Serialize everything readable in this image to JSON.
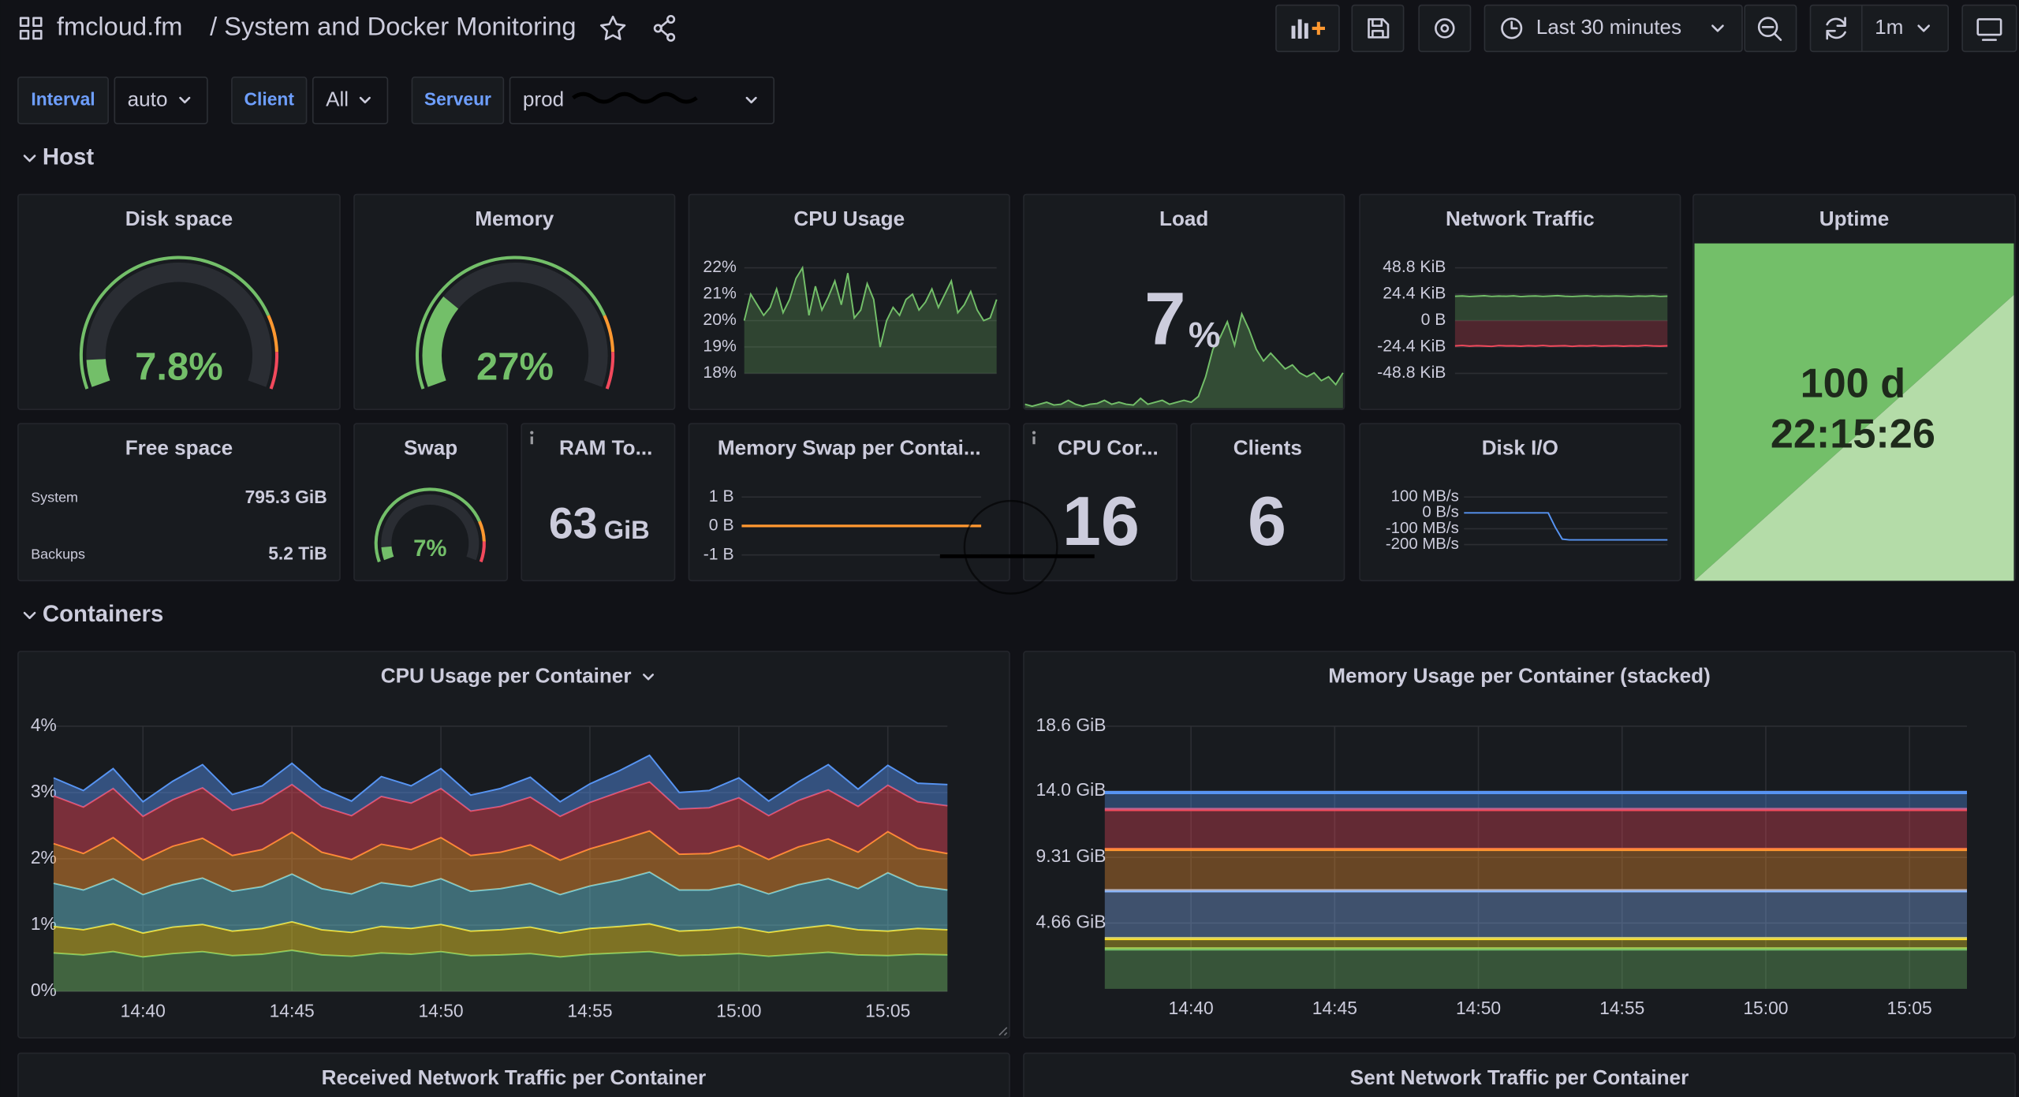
{
  "header": {
    "org": "fmcloud.fm",
    "title": "/ System and Docker Monitoring",
    "time_range": "Last 30 minutes",
    "refresh": "1m"
  },
  "variables": [
    {
      "label": "Interval",
      "value": "auto"
    },
    {
      "label": "Client",
      "value": "All"
    },
    {
      "label": "Serveur",
      "value": "prod"
    }
  ],
  "rows": [
    "Host",
    "Containers"
  ],
  "panels": {
    "disk_space": {
      "title": "Disk space",
      "type": "gauge",
      "value": 7.8,
      "value_label": "7.8%",
      "min": 0,
      "max": 100,
      "thresholds": [
        {
          "value": 0,
          "color": "#73bf69"
        },
        {
          "value": 80,
          "color": "#ff9830"
        },
        {
          "value": 90,
          "color": "#f2495c"
        }
      ]
    },
    "memory": {
      "title": "Memory",
      "type": "gauge",
      "value": 27,
      "value_label": "27%",
      "min": 0,
      "max": 100,
      "thresholds": [
        {
          "value": 0,
          "color": "#73bf69"
        },
        {
          "value": 80,
          "color": "#ff9830"
        },
        {
          "value": 90,
          "color": "#f2495c"
        }
      ]
    },
    "cpu_usage": {
      "title": "CPU Usage",
      "type": "line",
      "color": "#73bf69",
      "ylim": [
        18,
        22
      ],
      "yticks": [
        {
          "value": 22,
          "label": "22%"
        },
        {
          "value": 21,
          "label": "21%"
        },
        {
          "value": 20,
          "label": "20%"
        },
        {
          "value": 19,
          "label": "19%"
        },
        {
          "value": 18,
          "label": "18%"
        }
      ],
      "values": [
        20.0,
        21.0,
        20.6,
        20.2,
        20.5,
        21.2,
        20.3,
        20.8,
        21.6,
        22.0,
        20.2,
        21.3,
        20.4,
        20.9,
        21.5,
        20.6,
        21.8,
        20.1,
        20.4,
        21.4,
        20.8,
        19.0,
        20.0,
        20.5,
        20.2,
        20.8,
        21.0,
        20.4,
        20.7,
        21.2,
        20.5,
        21.0,
        21.5,
        20.3,
        20.6,
        21.1,
        20.4,
        20.0,
        20.1,
        20.8
      ]
    },
    "load": {
      "title": "Load",
      "type": "stat",
      "value": 7,
      "unit": "%",
      "color": "#73bf69",
      "ylim": [
        0,
        40
      ],
      "values": [
        1,
        0.5,
        1,
        1.5,
        0.8,
        1,
        2,
        1,
        0.5,
        1,
        1.2,
        2,
        1,
        1.5,
        1,
        0.8,
        2.5,
        1,
        1.5,
        2,
        1,
        1.5,
        2,
        1.5,
        3,
        8,
        15,
        18,
        22,
        16,
        24,
        20,
        15,
        12,
        14,
        12,
        10,
        11,
        9,
        8,
        9,
        7,
        8,
        6,
        9
      ]
    },
    "network_traffic": {
      "title": "Network Traffic",
      "type": "line",
      "ylim": [
        -48.8,
        48.8
      ],
      "yticks": [
        {
          "value": 48.8,
          "label": "48.8 KiB"
        },
        {
          "value": 24.4,
          "label": "24.4 KiB"
        },
        {
          "value": 0,
          "label": "0 B"
        },
        {
          "value": -24.4,
          "label": "-24.4 KiB"
        },
        {
          "value": -48.8,
          "label": "-48.8 KiB"
        }
      ],
      "series": [
        {
          "color": "#73bf69",
          "values": [
            22.5,
            22.8,
            22.3,
            22.6,
            23.0,
            22.4,
            22.7,
            22.5,
            22.9,
            22.2,
            22.6,
            22.8,
            22.4,
            22.7,
            23.1,
            22.5,
            22.3,
            22.6,
            22.9,
            22.4,
            22.7,
            22.5,
            22.8,
            22.6,
            22.3,
            22.7,
            22.5,
            22.9,
            22.4,
            22.6
          ]
        },
        {
          "color": "#f2495c",
          "values": [
            -23.4,
            -23.0,
            -23.6,
            -23.2,
            -23.5,
            -23.8,
            -23.1,
            -23.4,
            -23.3,
            -23.7,
            -23.2,
            -23.5,
            -23.0,
            -23.6,
            -23.4,
            -23.2,
            -23.8,
            -23.3,
            -23.5,
            -23.1,
            -23.6,
            -23.4,
            -23.2,
            -23.7,
            -23.3,
            -23.5,
            -23.0,
            -23.4,
            -23.6,
            -23.3
          ]
        }
      ]
    },
    "uptime": {
      "title": "Uptime",
      "lines": [
        "100 d",
        "22:15:26"
      ]
    },
    "free_space": {
      "title": "Free space",
      "rows": [
        {
          "name": "System",
          "value": "795.3 GiB"
        },
        {
          "name": "Backups",
          "value": "5.2 TiB"
        }
      ]
    },
    "swap": {
      "title": "Swap",
      "type": "gauge",
      "value": 7,
      "value_label": "7%",
      "min": 0,
      "max": 100,
      "thresholds": [
        {
          "value": 0,
          "color": "#73bf69"
        },
        {
          "value": 80,
          "color": "#ff9830"
        },
        {
          "value": 90,
          "color": "#f2495c"
        }
      ]
    },
    "ram_total": {
      "title": "RAM To...",
      "value": 63,
      "unit": "GiB"
    },
    "memory_swap": {
      "title": "Memory Swap per Contai...",
      "type": "line",
      "ylim": [
        -1,
        1
      ],
      "yticks": [
        {
          "value": 1,
          "label": "1 B"
        },
        {
          "value": 0,
          "label": "0 B"
        },
        {
          "value": -1,
          "label": "-1 B"
        }
      ],
      "series": [
        {
          "color": "#ff9830",
          "values": [
            0,
            0,
            0,
            0,
            0,
            0,
            0,
            0
          ]
        }
      ]
    },
    "cpu_cores": {
      "title": "CPU Cor...",
      "value": 16
    },
    "clients": {
      "title": "Clients",
      "value": 6
    },
    "disk_io": {
      "title": "Disk I/O",
      "type": "line",
      "ylim": [
        -200,
        100
      ],
      "yticks": [
        {
          "value": 100,
          "label": "100 MB/s"
        },
        {
          "value": 0,
          "label": "0 B/s"
        },
        {
          "value": -100,
          "label": "-100 MB/s"
        },
        {
          "value": -200,
          "label": "-200 MB/s"
        }
      ],
      "series": [
        {
          "color": "#5794f2",
          "values": [
            0,
            0,
            0,
            0,
            0,
            0,
            0,
            0,
            0,
            0,
            0,
            0,
            0,
            -90,
            -165,
            -170,
            -170,
            -170,
            -170,
            -170,
            -170,
            -170,
            -170,
            -170,
            -170,
            -170,
            -170,
            -170,
            -170,
            -170
          ]
        }
      ]
    },
    "cpu_per_container": {
      "title": "CPU Usage per Container",
      "type": "area",
      "stacked": true,
      "x": [
        "14:37",
        "14:38",
        "14:39",
        "14:40",
        "14:41",
        "14:42",
        "14:43",
        "14:44",
        "14:45",
        "14:46",
        "14:47",
        "14:48",
        "14:49",
        "14:50",
        "14:51",
        "14:52",
        "14:53",
        "14:54",
        "14:55",
        "14:56",
        "14:57",
        "14:58",
        "14:59",
        "15:00",
        "15:01",
        "15:02",
        "15:03",
        "15:04",
        "15:05",
        "15:06",
        "15:07"
      ],
      "xlim": [
        "14:37",
        "15:07"
      ],
      "xticks": [
        "14:40",
        "14:45",
        "14:50",
        "14:55",
        "15:00",
        "15:05"
      ],
      "ylim": [
        0,
        4
      ],
      "yticks": [
        {
          "value": 0,
          "label": "0%"
        },
        {
          "value": 1,
          "label": "1%"
        },
        {
          "value": 2,
          "label": "2%"
        },
        {
          "value": 3,
          "label": "3%"
        },
        {
          "value": 4,
          "label": "4%"
        }
      ],
      "series": [
        {
          "color": "#73bf69",
          "values": [
            0.58,
            0.55,
            0.6,
            0.52,
            0.57,
            0.6,
            0.54,
            0.56,
            0.62,
            0.55,
            0.53,
            0.58,
            0.56,
            0.6,
            0.54,
            0.55,
            0.57,
            0.52,
            0.56,
            0.58,
            0.6,
            0.54,
            0.55,
            0.57,
            0.53,
            0.56,
            0.59,
            0.55,
            0.54,
            0.56,
            0.55
          ]
        },
        {
          "color": "#fade2a",
          "values": [
            0.4,
            0.38,
            0.42,
            0.36,
            0.4,
            0.41,
            0.37,
            0.39,
            0.43,
            0.38,
            0.36,
            0.4,
            0.39,
            0.41,
            0.37,
            0.38,
            0.4,
            0.36,
            0.39,
            0.4,
            0.42,
            0.37,
            0.38,
            0.4,
            0.36,
            0.39,
            0.41,
            0.38,
            0.37,
            0.39,
            0.38
          ]
        },
        {
          "color": "#6ed0e0",
          "values": [
            0.65,
            0.6,
            0.68,
            0.58,
            0.64,
            0.7,
            0.6,
            0.63,
            0.72,
            0.62,
            0.58,
            0.66,
            0.63,
            0.69,
            0.6,
            0.62,
            0.66,
            0.58,
            0.64,
            0.7,
            0.78,
            0.62,
            0.6,
            0.65,
            0.58,
            0.66,
            0.7,
            0.62,
            0.88,
            0.64,
            0.6
          ]
        },
        {
          "color": "#ff9830",
          "values": [
            0.6,
            0.55,
            0.62,
            0.52,
            0.58,
            0.6,
            0.54,
            0.56,
            0.63,
            0.55,
            0.52,
            0.58,
            0.56,
            0.62,
            0.54,
            0.55,
            0.58,
            0.52,
            0.56,
            0.6,
            0.62,
            0.54,
            0.55,
            0.58,
            0.52,
            0.57,
            0.6,
            0.55,
            0.62,
            0.57,
            0.55
          ]
        },
        {
          "color": "#f2495c",
          "values": [
            0.72,
            0.7,
            0.74,
            0.66,
            0.7,
            0.76,
            0.68,
            0.7,
            0.72,
            0.69,
            0.66,
            0.72,
            0.7,
            0.74,
            0.67,
            0.69,
            0.72,
            0.66,
            0.7,
            0.73,
            0.74,
            0.68,
            0.69,
            0.72,
            0.66,
            0.7,
            0.74,
            0.69,
            0.7,
            0.7,
            0.72
          ]
        },
        {
          "color": "#5794f2",
          "values": [
            0.27,
            0.25,
            0.3,
            0.22,
            0.28,
            0.35,
            0.24,
            0.26,
            0.32,
            0.27,
            0.22,
            0.3,
            0.26,
            0.3,
            0.24,
            0.27,
            0.3,
            0.22,
            0.28,
            0.32,
            0.4,
            0.25,
            0.26,
            0.3,
            0.22,
            0.28,
            0.38,
            0.26,
            0.3,
            0.28,
            0.32
          ]
        }
      ]
    },
    "memory_per_container": {
      "title": "Memory Usage per Container (stacked)",
      "type": "area",
      "stacked": true,
      "x": [
        "14:37",
        "14:42",
        "14:47",
        "14:52",
        "14:57",
        "15:02",
        "15:07"
      ],
      "xlim": [
        "14:37",
        "15:07"
      ],
      "xticks": [
        "14:40",
        "14:45",
        "14:50",
        "14:55",
        "15:00",
        "15:05"
      ],
      "ylim": [
        0,
        18.6
      ],
      "yticks": [
        {
          "value": 4.66,
          "label": "4.66 GiB"
        },
        {
          "value": 9.31,
          "label": "9.31 GiB"
        },
        {
          "value": 14.0,
          "label": "14.0 GiB"
        },
        {
          "value": 18.6,
          "label": "18.6 GiB"
        }
      ],
      "series": [
        {
          "color": "#73bf69",
          "values": [
            2.83,
            2.83,
            2.83,
            2.83,
            2.83,
            2.83,
            2.83
          ]
        },
        {
          "color": "#fade2a",
          "values": [
            0.73,
            0.73,
            0.73,
            0.73,
            0.73,
            0.73,
            0.73
          ]
        },
        {
          "color": "#8ab8ff",
          "values": [
            3.39,
            3.39,
            3.39,
            3.39,
            3.39,
            3.39,
            3.39
          ]
        },
        {
          "color": "#ff9830",
          "values": [
            2.92,
            2.92,
            2.92,
            2.92,
            2.92,
            2.92,
            2.92
          ]
        },
        {
          "color": "#f2495c",
          "values": [
            2.83,
            2.83,
            2.83,
            2.83,
            2.83,
            2.83,
            2.83
          ]
        },
        {
          "color": "#5794f2",
          "values": [
            1.2,
            1.2,
            1.2,
            1.2,
            1.2,
            1.2,
            1.2
          ]
        }
      ]
    },
    "received_network": {
      "title": "Received Network Traffic per Container"
    },
    "sent_network": {
      "title": "Sent Network Traffic per Container"
    }
  }
}
